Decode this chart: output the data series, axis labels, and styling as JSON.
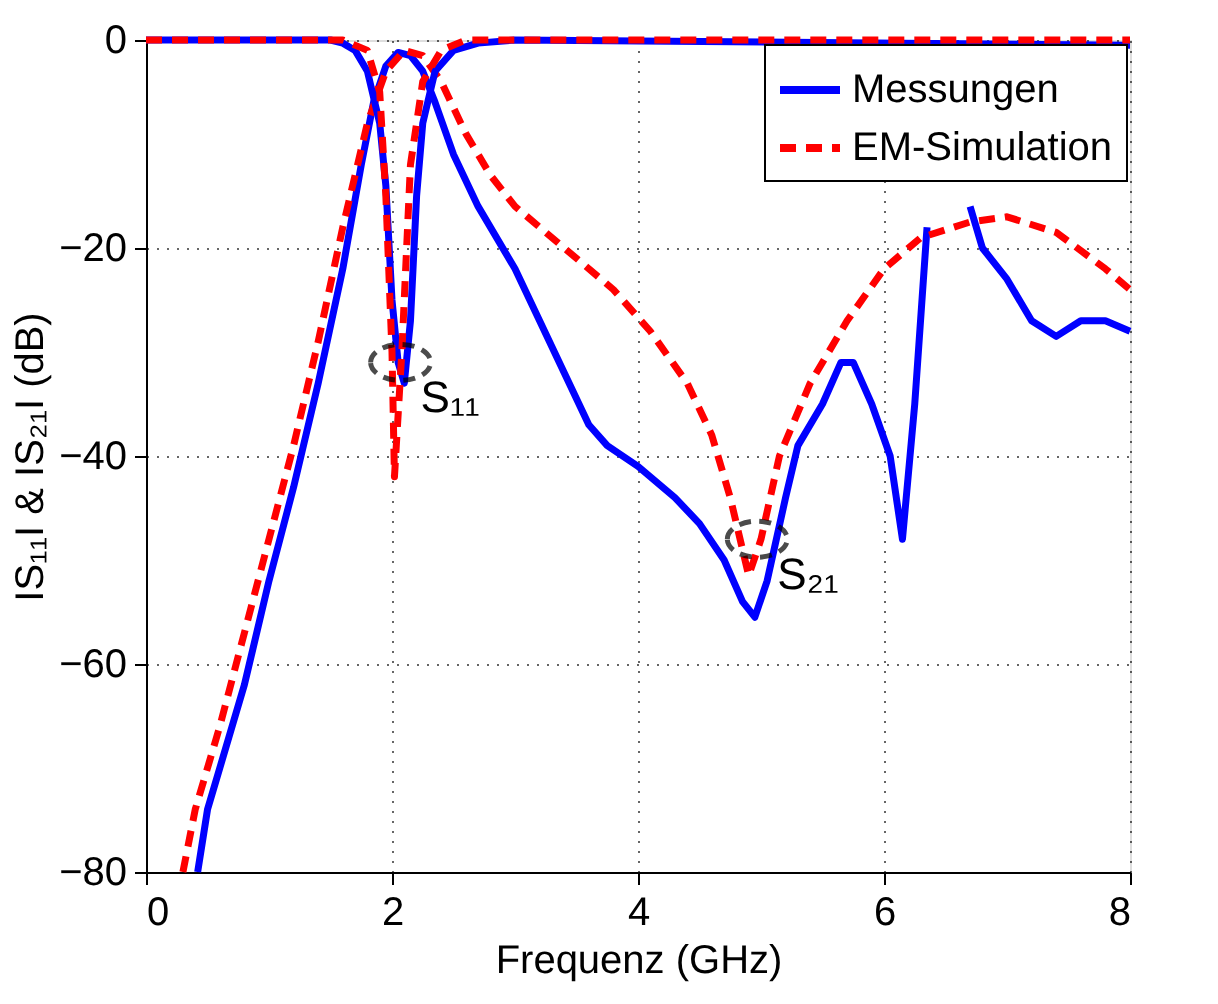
{
  "chart_data": {
    "type": "line",
    "xlabel": "Frequenz (GHz)",
    "ylabel": "IS₁₁I & IS₂₁I (dB)",
    "xlim": [
      0,
      8
    ],
    "ylim": [
      -80,
      0
    ],
    "xticks": [
      0,
      2,
      4,
      6,
      8
    ],
    "yticks": [
      -80,
      -60,
      -40,
      -20,
      0
    ],
    "grid": true,
    "legend": "top right",
    "series": [
      {
        "name": "Messungen",
        "color": "#0000ff",
        "line_style": "solid",
        "x": [
          0.42,
          0.5,
          0.6,
          0.8,
          1.0,
          1.2,
          1.4,
          1.6,
          1.75,
          1.85,
          1.95,
          2.05,
          2.15,
          2.25,
          2.35,
          2.5,
          2.7,
          3.0,
          3.2,
          3.4,
          3.6,
          3.75,
          4.0,
          4.3,
          4.5,
          4.7,
          4.85,
          4.95,
          5.05,
          5.2,
          5.3,
          5.5,
          5.65,
          5.75,
          5.9,
          6.05,
          6.15,
          6.25,
          6.35,
          6.45,
          6.7,
          6.8,
          7.0,
          7.2,
          7.4,
          7.6,
          7.8,
          8.0
        ],
        "values": [
          -80,
          -74,
          -70,
          -62,
          -52,
          -43,
          -33,
          -22,
          -12,
          -6,
          -2.5,
          -1.2,
          -1.5,
          -3,
          -6,
          -11,
          -16,
          -22,
          -27,
          -32,
          -37,
          -39,
          -41,
          -44,
          -46.5,
          -50,
          -54,
          -55.5,
          -52,
          -44,
          -39,
          -35,
          -31,
          -31,
          -35,
          -40,
          -48,
          -35,
          -18,
          null,
          -16,
          -20,
          -23,
          -27,
          -28.5,
          -27,
          -27,
          -28
        ]
      },
      {
        "name": "EM-Simulation",
        "color": "#ff0000",
        "line_style": "dashed",
        "x": [
          0.3,
          0.4,
          0.6,
          0.8,
          1.0,
          1.2,
          1.4,
          1.6,
          1.8,
          1.95,
          2.1,
          2.25,
          2.4,
          2.6,
          2.8,
          3.0,
          3.4,
          3.8,
          4.1,
          4.4,
          4.6,
          4.75,
          4.9,
          5.0,
          5.15,
          5.4,
          5.7,
          6.0,
          6.3,
          6.7,
          7.0,
          7.4,
          7.8,
          8.0
        ],
        "values": [
          -80,
          -74,
          -66,
          -57,
          -48,
          -39,
          -29,
          -18,
          -8,
          -3,
          -1,
          -1.5,
          -4,
          -9,
          -13,
          -16,
          -20,
          -24,
          -28,
          -33,
          -38,
          -44,
          -51.5,
          -48,
          -40,
          -33,
          -27,
          -22,
          -19,
          -17.5,
          -17,
          -18.5,
          -22,
          -24
        ]
      },
      {
        "color": "#0000ff",
        "line_style": "solid",
        "x": [
          0,
          1.5,
          1.6,
          1.7,
          1.8,
          1.9,
          1.95,
          2.0,
          2.05,
          2.1,
          2.15,
          2.2,
          2.25,
          2.35,
          2.5,
          2.7,
          3.0,
          8.0
        ],
        "values": [
          0,
          0,
          -0.3,
          -1,
          -3,
          -8,
          -14,
          -25,
          -31,
          -33,
          -27,
          -15,
          -8,
          -3,
          -1,
          -0.3,
          0,
          -0.5
        ]
      },
      {
        "color": "#ff0000",
        "line_style": "dashed",
        "x": [
          0,
          1.6,
          1.8,
          1.9,
          1.95,
          2.0,
          2.02,
          2.08,
          2.15,
          2.25,
          2.4,
          2.6,
          8.0
        ],
        "values": [
          0,
          0,
          -1,
          -5,
          -15,
          -30,
          -42,
          -30,
          -12,
          -4,
          -1,
          0,
          0
        ]
      }
    ],
    "annotations": [
      {
        "text": "S₁₁",
        "x": 2.07,
        "y": -31
      },
      {
        "text": "S₂₁",
        "x": 4.97,
        "y": -48
      }
    ]
  }
}
